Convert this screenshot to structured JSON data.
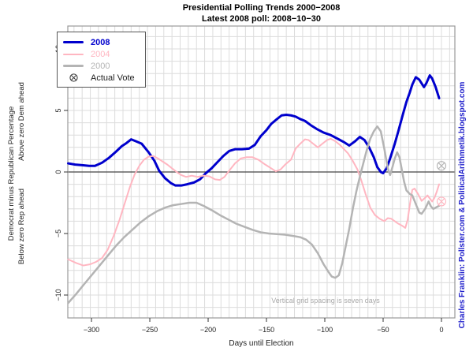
{
  "header": {
    "title_line1": "Presidential Polling Trends 2000−2008",
    "title_line2": "Latest 2008 poll: 2008−10−30"
  },
  "legend": {
    "items": [
      {
        "label": "2008",
        "color": "#0000CD",
        "bold": true,
        "swatch": "line",
        "thickness": 3
      },
      {
        "label": "2004",
        "color": "#FFB6C1",
        "bold": false,
        "swatch": "line",
        "thickness": 2
      },
      {
        "label": "2000",
        "color": "#B4B4B4",
        "bold": false,
        "swatch": "line",
        "thickness": 2.5
      },
      {
        "label": "Actual Vote",
        "color": "#222222",
        "bold": false,
        "swatch": "circle-x",
        "thickness": 1
      }
    ]
  },
  "annotation": "Vertical grid spacing is seven days",
  "credit": {
    "text": "Charles Franklin: Pollster.com & PoliticalArithmetik.blogspot.com",
    "color": "#2222CC"
  },
  "colors": {
    "grid": "#DCDCDC",
    "border": "#999999",
    "zero_line": "#444444",
    "tick_text": "#222222",
    "annotation_text": "#AAAAAA"
  },
  "chart_data": {
    "type": "line",
    "title": "Presidential Polling Trends 2000−2008",
    "subtitle": "Latest 2008 poll: 2008−10−30",
    "xlabel": "Days until Election",
    "ylabel": "Democrat minus Republican Percentage",
    "ylabel_upper": "Above zero Dem ahead",
    "ylabel_lower": "Below zero Rep ahead",
    "xlim": [
      -320.3,
      11.5
    ],
    "ylim": [
      -11.86,
      11.86
    ],
    "x_ticks": [
      -300,
      -250,
      -200,
      -150,
      -100,
      -50,
      0
    ],
    "y_ticks": [
      -10,
      -5,
      0,
      5,
      10
    ],
    "grid": {
      "on": true,
      "x_step_days": 7,
      "y_step": 1
    },
    "zero_reference_line": 0,
    "legend_position": "top-left",
    "series": [
      {
        "name": "2008",
        "color": "#0000CD",
        "width": 3,
        "points": [
          [
            -320,
            0.7
          ],
          [
            -314,
            0.6
          ],
          [
            -308,
            0.55
          ],
          [
            -302,
            0.5
          ],
          [
            -297,
            0.5
          ],
          [
            -291,
            0.75
          ],
          [
            -285,
            1.15
          ],
          [
            -279,
            1.65
          ],
          [
            -274,
            2.1
          ],
          [
            -270,
            2.35
          ],
          [
            -266,
            2.65
          ],
          [
            -262,
            2.5
          ],
          [
            -257,
            2.3
          ],
          [
            -251,
            1.6
          ],
          [
            -246,
            0.9
          ],
          [
            -242,
            0.1
          ],
          [
            -237,
            -0.5
          ],
          [
            -232,
            -0.9
          ],
          [
            -228,
            -1.1
          ],
          [
            -223,
            -1.1
          ],
          [
            -218,
            -1.0
          ],
          [
            -212,
            -0.85
          ],
          [
            -207,
            -0.6
          ],
          [
            -202,
            -0.1
          ],
          [
            -197,
            0.3
          ],
          [
            -192,
            0.8
          ],
          [
            -187,
            1.3
          ],
          [
            -182,
            1.7
          ],
          [
            -177,
            1.85
          ],
          [
            -171,
            1.85
          ],
          [
            -165,
            1.9
          ],
          [
            -160,
            2.2
          ],
          [
            -155,
            2.9
          ],
          [
            -150,
            3.4
          ],
          [
            -146,
            3.9
          ],
          [
            -141,
            4.3
          ],
          [
            -137,
            4.6
          ],
          [
            -133,
            4.65
          ],
          [
            -129,
            4.6
          ],
          [
            -125,
            4.5
          ],
          [
            -121,
            4.3
          ],
          [
            -117,
            4.15
          ],
          [
            -112,
            3.8
          ],
          [
            -107,
            3.5
          ],
          [
            -101,
            3.2
          ],
          [
            -95,
            3.0
          ],
          [
            -89,
            2.7
          ],
          [
            -84,
            2.45
          ],
          [
            -79,
            2.15
          ],
          [
            -74,
            2.5
          ],
          [
            -70,
            2.85
          ],
          [
            -66,
            2.6
          ],
          [
            -62,
            2.0
          ],
          [
            -58,
            1.2
          ],
          [
            -55,
            0.4
          ],
          [
            -52,
            0.0
          ],
          [
            -50,
            -0.1
          ],
          [
            -47,
            0.3
          ],
          [
            -44,
            1.1
          ],
          [
            -40,
            2.3
          ],
          [
            -37,
            3.3
          ],
          [
            -33,
            4.7
          ],
          [
            -30,
            5.7
          ],
          [
            -27,
            6.5
          ],
          [
            -25,
            7.1
          ],
          [
            -22,
            7.7
          ],
          [
            -19,
            7.5
          ],
          [
            -17,
            7.2
          ],
          [
            -15,
            6.9
          ],
          [
            -13,
            7.2
          ],
          [
            -10,
            7.85
          ],
          [
            -8,
            7.6
          ],
          [
            -5,
            6.9
          ],
          [
            -2,
            6.0
          ]
        ]
      },
      {
        "name": "2004",
        "color": "#FFB6C1",
        "width": 2,
        "points": [
          [
            -320,
            -7.1
          ],
          [
            -313,
            -7.4
          ],
          [
            -307,
            -7.6
          ],
          [
            -301,
            -7.5
          ],
          [
            -296,
            -7.3
          ],
          [
            -291,
            -7.0
          ],
          [
            -286,
            -6.3
          ],
          [
            -281,
            -5.2
          ],
          [
            -276,
            -3.9
          ],
          [
            -271,
            -2.4
          ],
          [
            -267,
            -1.2
          ],
          [
            -263,
            -0.2
          ],
          [
            -259,
            0.5
          ],
          [
            -255,
            1.0
          ],
          [
            -251,
            1.25
          ],
          [
            -247,
            1.3
          ],
          [
            -243,
            1.1
          ],
          [
            -239,
            0.85
          ],
          [
            -235,
            0.6
          ],
          [
            -231,
            0.3
          ],
          [
            -227,
            0.0
          ],
          [
            -223,
            -0.25
          ],
          [
            -219,
            -0.4
          ],
          [
            -214,
            -0.3
          ],
          [
            -209,
            -0.4
          ],
          [
            -204,
            -0.3
          ],
          [
            -199,
            -0.35
          ],
          [
            -194,
            -0.6
          ],
          [
            -190,
            -0.65
          ],
          [
            -186,
            -0.4
          ],
          [
            -182,
            0.1
          ],
          [
            -177,
            0.7
          ],
          [
            -172,
            1.1
          ],
          [
            -167,
            1.2
          ],
          [
            -162,
            1.2
          ],
          [
            -157,
            1.0
          ],
          [
            -151,
            0.6
          ],
          [
            -146,
            0.3
          ],
          [
            -142,
            0.05
          ],
          [
            -138,
            0.2
          ],
          [
            -134,
            0.6
          ],
          [
            -129,
            1.0
          ],
          [
            -125,
            1.9
          ],
          [
            -121,
            2.3
          ],
          [
            -117,
            2.65
          ],
          [
            -114,
            2.6
          ],
          [
            -110,
            2.3
          ],
          [
            -106,
            2.0
          ],
          [
            -102,
            2.3
          ],
          [
            -98,
            2.6
          ],
          [
            -95,
            2.7
          ],
          [
            -91,
            2.5
          ],
          [
            -87,
            2.2
          ],
          [
            -83,
            1.8
          ],
          [
            -80,
            1.5
          ],
          [
            -76,
            0.9
          ],
          [
            -72,
            0.2
          ],
          [
            -69,
            -0.6
          ],
          [
            -65,
            -1.8
          ],
          [
            -61,
            -2.9
          ],
          [
            -57,
            -3.5
          ],
          [
            -53,
            -3.8
          ],
          [
            -49,
            -4.0
          ],
          [
            -46,
            -3.75
          ],
          [
            -43,
            -3.8
          ],
          [
            -40,
            -4.0
          ],
          [
            -37,
            -4.2
          ],
          [
            -34,
            -4.35
          ],
          [
            -31,
            -4.55
          ],
          [
            -29,
            -3.9
          ],
          [
            -27,
            -2.6
          ],
          [
            -25,
            -1.45
          ],
          [
            -23,
            -1.35
          ],
          [
            -20,
            -1.8
          ],
          [
            -17,
            -2.35
          ],
          [
            -14,
            -2.1
          ],
          [
            -12,
            -1.9
          ],
          [
            -10,
            -2.15
          ],
          [
            -8,
            -2.4
          ],
          [
            -6,
            -2.1
          ],
          [
            -4,
            -1.6
          ],
          [
            -2,
            -1.0
          ]
        ]
      },
      {
        "name": "2000",
        "color": "#B4B4B4",
        "width": 2.5,
        "points": [
          [
            -320,
            -10.65
          ],
          [
            -313,
            -9.9
          ],
          [
            -307,
            -9.2
          ],
          [
            -300,
            -8.4
          ],
          [
            -293,
            -7.6
          ],
          [
            -286,
            -6.8
          ],
          [
            -279,
            -6.0
          ],
          [
            -272,
            -5.3
          ],
          [
            -265,
            -4.7
          ],
          [
            -258,
            -4.1
          ],
          [
            -251,
            -3.6
          ],
          [
            -244,
            -3.2
          ],
          [
            -237,
            -2.9
          ],
          [
            -230,
            -2.7
          ],
          [
            -223,
            -2.6
          ],
          [
            -216,
            -2.5
          ],
          [
            -210,
            -2.5
          ],
          [
            -204,
            -2.75
          ],
          [
            -197,
            -3.1
          ],
          [
            -190,
            -3.5
          ],
          [
            -183,
            -3.85
          ],
          [
            -176,
            -4.2
          ],
          [
            -169,
            -4.45
          ],
          [
            -162,
            -4.7
          ],
          [
            -155,
            -4.9
          ],
          [
            -148,
            -5.0
          ],
          [
            -141,
            -5.05
          ],
          [
            -134,
            -5.1
          ],
          [
            -127,
            -5.2
          ],
          [
            -121,
            -5.3
          ],
          [
            -116,
            -5.5
          ],
          [
            -111,
            -5.9
          ],
          [
            -106,
            -6.6
          ],
          [
            -101,
            -7.5
          ],
          [
            -97,
            -8.1
          ],
          [
            -94,
            -8.5
          ],
          [
            -91,
            -8.6
          ],
          [
            -88,
            -8.4
          ],
          [
            -85,
            -7.4
          ],
          [
            -82,
            -6.0
          ],
          [
            -79,
            -4.6
          ],
          [
            -76,
            -3.0
          ],
          [
            -73,
            -1.6
          ],
          [
            -70,
            -0.4
          ],
          [
            -67,
            0.7
          ],
          [
            -64,
            1.8
          ],
          [
            -61,
            2.7
          ],
          [
            -58,
            3.3
          ],
          [
            -55,
            3.7
          ],
          [
            -52,
            3.3
          ],
          [
            -49,
            1.9
          ],
          [
            -46,
            0.3
          ],
          [
            -44,
            -0.25
          ],
          [
            -42,
            0.4
          ],
          [
            -40,
            1.1
          ],
          [
            -38,
            1.6
          ],
          [
            -36,
            1.2
          ],
          [
            -34,
            0.2
          ],
          [
            -32,
            -0.8
          ],
          [
            -30,
            -1.5
          ],
          [
            -27,
            -1.8
          ],
          [
            -25,
            -1.9
          ],
          [
            -22,
            -2.6
          ],
          [
            -19,
            -3.3
          ],
          [
            -17,
            -3.4
          ],
          [
            -14,
            -3.0
          ],
          [
            -11,
            -2.4
          ],
          [
            -9,
            -2.8
          ],
          [
            -7,
            -3.0
          ],
          [
            -5,
            -2.9
          ],
          [
            -2,
            -2.75
          ]
        ]
      }
    ],
    "actual_votes": [
      {
        "year": "2000",
        "x": 0,
        "y": 0.5,
        "color": "#B4B4B4"
      },
      {
        "year": "2004",
        "x": 0,
        "y": -2.4,
        "color": "#FFB6C1"
      }
    ]
  }
}
